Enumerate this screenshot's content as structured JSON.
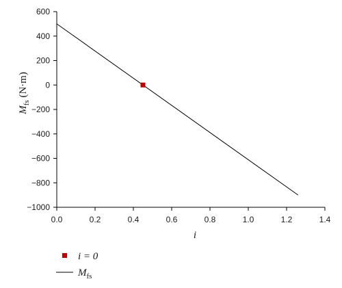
{
  "chart_data": {
    "type": "line",
    "xlabel": "i",
    "ylabel": {
      "symbol": "M",
      "subscript": "fs",
      "unit": " (N·m)"
    },
    "xlim": [
      0.0,
      1.4
    ],
    "ylim": [
      -1000,
      600
    ],
    "x_ticks": [
      0.0,
      0.2,
      0.4,
      0.6,
      0.8,
      1.0,
      1.2,
      1.4
    ],
    "x_tick_labels": [
      "0.0",
      "0.2",
      "0.4",
      "0.6",
      "0.8",
      "1.0",
      "1.2",
      "1.4"
    ],
    "y_ticks": [
      600,
      400,
      200,
      0,
      -200,
      -400,
      -600,
      -800,
      -1000
    ],
    "y_tick_labels": [
      "600",
      "400",
      "200",
      "0",
      "−200",
      "−400",
      "−600",
      "−800",
      "−1000"
    ],
    "grid": false,
    "legend_position": "below",
    "series": [
      {
        "name": "M_fs",
        "type": "line",
        "color": "#000000",
        "x": [
          0.0,
          1.26
        ],
        "y": [
          500,
          -900
        ]
      },
      {
        "name": "i = 0",
        "type": "scatter",
        "marker": "square",
        "color": "#c00000",
        "x": [
          0.45
        ],
        "y": [
          0
        ]
      }
    ],
    "legend": {
      "items": [
        {
          "marker": "square",
          "color": "#c00000",
          "label": "i = 0"
        },
        {
          "marker": "line",
          "color": "#000000",
          "symbol": "M",
          "subscript": "fs"
        }
      ]
    }
  }
}
